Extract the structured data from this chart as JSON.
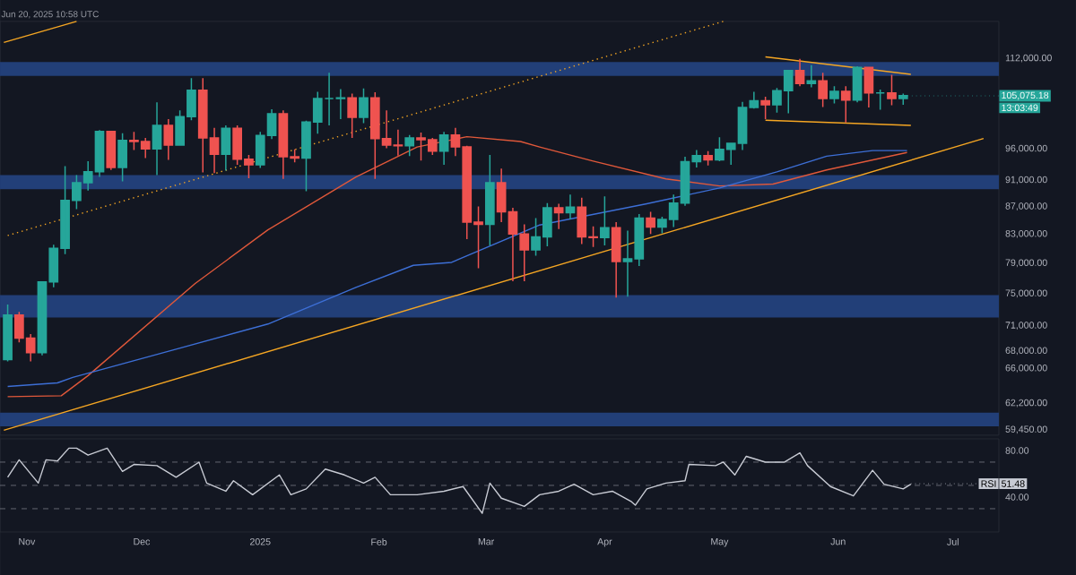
{
  "chart_data": [
    {
      "type": "candlestick",
      "xlim": [
        "2024-10-25",
        "2025-07-13"
      ],
      "ylim": [
        58900,
        119300
      ],
      "log": true,
      "tick_labels": "y",
      "yticks": [
        {
          "value": 112000,
          "label": "112,000.00"
        },
        {
          "value": 96000,
          "label": "96,000.00"
        },
        {
          "value": 91000,
          "label": "91,000.00"
        },
        {
          "value": 87000,
          "label": "87,000.00"
        },
        {
          "value": 83000,
          "label": "83,000.00"
        },
        {
          "value": 79000,
          "label": "79,000.00"
        },
        {
          "value": 75000,
          "label": "75,000.00"
        },
        {
          "value": 71000,
          "label": "71,000.00"
        },
        {
          "value": 68000,
          "label": "68,000.00"
        },
        {
          "value": 66000,
          "label": "66,000.00"
        },
        {
          "value": 62200,
          "label": "62,200.00"
        },
        {
          "value": 59450,
          "label": "59,450.00"
        }
      ],
      "x": [
        "2024-10-27",
        "2024-10-30",
        "2024-11-02",
        "2024-11-05",
        "2024-11-08",
        "2024-11-11",
        "2024-11-14",
        "2024-11-17",
        "2024-11-20",
        "2024-11-23",
        "2024-11-26",
        "2024-11-29",
        "2024-12-02",
        "2024-12-05",
        "2024-12-08",
        "2024-12-11",
        "2024-12-14",
        "2024-12-17",
        "2024-12-20",
        "2024-12-23",
        "2024-12-26",
        "2024-12-29",
        "2025-01-01",
        "2025-01-04",
        "2025-01-07",
        "2025-01-10",
        "2025-01-13",
        "2025-01-16",
        "2025-01-19",
        "2025-01-22",
        "2025-01-25",
        "2025-01-28",
        "2025-01-31",
        "2025-02-03",
        "2025-02-06",
        "2025-02-09",
        "2025-02-12",
        "2025-02-15",
        "2025-02-18",
        "2025-02-21",
        "2025-02-24",
        "2025-02-27",
        "2025-03-02",
        "2025-03-05",
        "2025-03-08",
        "2025-03-11",
        "2025-03-14",
        "2025-03-17",
        "2025-03-20",
        "2025-03-23",
        "2025-03-26",
        "2025-03-29",
        "2025-04-01",
        "2025-04-04",
        "2025-04-07",
        "2025-04-10",
        "2025-04-13",
        "2025-04-16",
        "2025-04-19",
        "2025-04-22",
        "2025-04-25",
        "2025-04-28",
        "2025-05-01",
        "2025-05-04",
        "2025-05-07",
        "2025-05-10",
        "2025-05-13",
        "2025-05-16",
        "2025-05-19",
        "2025-05-22",
        "2025-05-25",
        "2025-05-28",
        "2025-05-31",
        "2025-06-03",
        "2025-06-06",
        "2025-06-09",
        "2025-06-12",
        "2025-06-15",
        "2025-06-18"
      ],
      "ohlc": [
        [
          67000,
          73600,
          66800,
          72300
        ],
        [
          72300,
          72700,
          69000,
          69500
        ],
        [
          69500,
          70000,
          66800,
          67800
        ],
        [
          67800,
          76500,
          67500,
          76500
        ],
        [
          76500,
          81500,
          75800,
          81000
        ],
        [
          81000,
          93200,
          80200,
          87900
        ],
        [
          87900,
          91800,
          86600,
          90600
        ],
        [
          90600,
          94000,
          89400,
          92300
        ],
        [
          92300,
          99100,
          91500,
          98900
        ],
        [
          98900,
          99000,
          92600,
          93000
        ],
        [
          93000,
          98600,
          90800,
          97400
        ],
        [
          97400,
          98800,
          95800,
          97200
        ],
        [
          97200,
          97800,
          94500,
          96000
        ],
        [
          96000,
          103900,
          91800,
          99900
        ],
        [
          99900,
          101000,
          94200,
          96600
        ],
        [
          96600,
          102500,
          96500,
          101400
        ],
        [
          101400,
          108300,
          100800,
          106100
        ],
        [
          106100,
          108300,
          92200,
          97800
        ],
        [
          97800,
          99500,
          92100,
          95100
        ],
        [
          95100,
          99900,
          92500,
          99400
        ],
        [
          99400,
          99900,
          93400,
          94300
        ],
        [
          94300,
          95000,
          91300,
          93400
        ],
        [
          93400,
          98800,
          92900,
          98200
        ],
        [
          98200,
          102700,
          97600,
          101900
        ],
        [
          101900,
          102500,
          91200,
          94700
        ],
        [
          94700,
          95900,
          93800,
          94500
        ],
        [
          94500,
          100700,
          89300,
          100500
        ],
        [
          100500,
          105800,
          98500,
          104600
        ],
        [
          104600,
          109300,
          99900,
          104600
        ],
        [
          104600,
          106300,
          101000,
          104700
        ],
        [
          104700,
          105500,
          97800,
          101300
        ],
        [
          101300,
          106400,
          100300,
          104700
        ],
        [
          104700,
          105700,
          91200,
          97700
        ],
        [
          97700,
          102500,
          96100,
          96600
        ],
        [
          96600,
          99200,
          94900,
          96500
        ],
        [
          96500,
          98300,
          94800,
          97800
        ],
        [
          97800,
          98700,
          94100,
          97500
        ],
        [
          97500,
          97800,
          95000,
          95600
        ],
        [
          95600,
          98800,
          93400,
          98300
        ],
        [
          98300,
          99500,
          94800,
          96300
        ],
        [
          96300,
          96500,
          82300,
          84700
        ],
        [
          84700,
          87000,
          78300,
          84400
        ],
        [
          84400,
          95000,
          81400,
          90600
        ],
        [
          90600,
          92800,
          84700,
          86200
        ],
        [
          86200,
          86800,
          76600,
          83000
        ],
        [
          83000,
          84400,
          76600,
          80800
        ],
        [
          80800,
          85300,
          80000,
          82600
        ],
        [
          82600,
          87500,
          81300,
          86800
        ],
        [
          86800,
          87400,
          83700,
          86100
        ],
        [
          86100,
          88800,
          85100,
          86900
        ],
        [
          86900,
          88300,
          81600,
          82600
        ],
        [
          82600,
          84100,
          81200,
          82500
        ],
        [
          82500,
          88500,
          81400,
          83900
        ],
        [
          83900,
          84700,
          74500,
          79200
        ],
        [
          79200,
          83500,
          74600,
          79600
        ],
        [
          79600,
          85900,
          78600,
          85300
        ],
        [
          85300,
          86200,
          83000,
          84000
        ],
        [
          84000,
          85500,
          83100,
          85100
        ],
        [
          85100,
          88800,
          84000,
          87500
        ],
        [
          87500,
          94700,
          87100,
          93900
        ],
        [
          93900,
          95800,
          93000,
          94900
        ],
        [
          94900,
          95600,
          93300,
          94200
        ],
        [
          94200,
          97900,
          94000,
          95900
        ],
        [
          95900,
          97000,
          93400,
          96900
        ],
        [
          96900,
          104000,
          95800,
          103000
        ],
        [
          103000,
          105800,
          102800,
          104200
        ],
        [
          104200,
          104900,
          101000,
          103500
        ],
        [
          103500,
          106500,
          102100,
          106000
        ],
        [
          106000,
          109800,
          102000,
          109700
        ],
        [
          109700,
          111900,
          106800,
          107300
        ],
        [
          107300,
          110700,
          106600,
          107800
        ],
        [
          107800,
          109300,
          103100,
          104600
        ],
        [
          104600,
          106800,
          103700,
          105900
        ],
        [
          105900,
          106800,
          100400,
          104300
        ],
        [
          104300,
          110500,
          103900,
          110300
        ],
        [
          110300,
          110400,
          103000,
          105600
        ],
        [
          105600,
          106200,
          102600,
          105600
        ],
        [
          105600,
          108900,
          103400,
          104600
        ],
        [
          104600,
          105500,
          103500,
          105100
        ]
      ],
      "series": [
        {
          "type": "line",
          "color": "#e0583a",
          "x": [
            "2024-10-27",
            "2024-11-10",
            "2024-11-17",
            "2024-12-15",
            "2025-01-03",
            "2025-01-26",
            "2025-02-11",
            "2025-02-24",
            "2025-03-10",
            "2025-03-15",
            "2025-03-29",
            "2025-04-17",
            "2025-05-01",
            "2025-05-15",
            "2025-05-29",
            "2025-06-19"
          ],
          "values": [
            62900,
            63000,
            65200,
            76300,
            83600,
            91500,
            96300,
            98000,
            97200,
            96300,
            94000,
            91200,
            90100,
            90400,
            92600,
            95400
          ]
        },
        {
          "type": "line",
          "color": "#3d6fd6",
          "x": [
            "2024-10-27",
            "2024-11-09",
            "2024-11-13",
            "2024-12-10",
            "2025-01-03",
            "2025-01-26",
            "2025-02-10",
            "2025-02-20",
            "2025-03-15",
            "2025-04-12",
            "2025-05-01",
            "2025-05-16",
            "2025-05-29",
            "2025-06-10",
            "2025-06-19"
          ],
          "values": [
            64000,
            64400,
            65000,
            68200,
            71200,
            75800,
            78700,
            79100,
            84300,
            87400,
            89800,
            92300,
            94800,
            95700,
            95700
          ]
        },
        {
          "type": "line",
          "color": "#f5a623",
          "x": [
            "2024-10-26",
            "2025-07-09"
          ],
          "values": [
            59400,
            97700
          ]
        },
        {
          "type": "line",
          "color": "#f5a623",
          "line_style": "dotted",
          "x": [
            "2024-10-27",
            "2025-05-02"
          ],
          "values": [
            82800,
            119300
          ]
        },
        {
          "type": "line",
          "color": "#f5a623",
          "x": [
            "2024-10-26",
            "2024-11-14"
          ],
          "values": [
            115100,
            119300
          ]
        },
        {
          "type": "line",
          "color": "#f5a623",
          "x": [
            "2025-05-13",
            "2025-06-20"
          ],
          "values": [
            112300,
            109000
          ]
        },
        {
          "type": "line",
          "color": "#f5a623",
          "x": [
            "2025-05-13",
            "2025-06-20"
          ],
          "values": [
            100800,
            99900
          ]
        }
      ],
      "bands": [
        {
          "axis": "y",
          "from": 108700,
          "to": 111300,
          "color": "#223f78"
        },
        {
          "axis": "y",
          "from": 89600,
          "to": 91800,
          "color": "#223f78"
        },
        {
          "axis": "y",
          "from": 72000,
          "to": 74800,
          "color": "#223f78"
        },
        {
          "axis": "y",
          "from": 59800,
          "to": 61200,
          "color": "#223f78"
        }
      ],
      "annotations": [
        "Jun 20, 2025 10:58 UTC",
        {
          "text": "105,075.18",
          "x": "2025-06-18",
          "y": 105075.18
        },
        "13:03:49"
      ]
    },
    {
      "type": "line",
      "xlim": [
        "2024-10-25",
        "2025-07-13"
      ],
      "ylim": [
        10,
        90
      ],
      "color": "#c8cbd4",
      "xticks": [
        {
          "value": "2024-11-01",
          "label": "Nov"
        },
        {
          "value": "2024-12-01",
          "label": "Dec"
        },
        {
          "value": "2025-01-01",
          "label": "2025"
        },
        {
          "value": "2025-02-01",
          "label": "Feb"
        },
        {
          "value": "2025-03-01",
          "label": "Mar"
        },
        {
          "value": "2025-04-01",
          "label": "Apr"
        },
        {
          "value": "2025-05-01",
          "label": "May"
        },
        {
          "value": "2025-06-01",
          "label": "Jun"
        },
        {
          "value": "2025-07-01",
          "label": "Jul"
        }
      ],
      "yticks": [
        {
          "value": 80,
          "label": "80.00"
        },
        {
          "value": 40,
          "label": "40.00"
        }
      ],
      "x": [
        "2024-10-27",
        "2024-10-30",
        "2024-11-04",
        "2024-11-06",
        "2024-11-09",
        "2024-11-12",
        "2024-11-14",
        "2024-11-17",
        "2024-11-22",
        "2024-11-26",
        "2024-11-29",
        "2024-12-05",
        "2024-12-10",
        "2024-12-16",
        "2024-12-18",
        "2024-12-23",
        "2024-12-25",
        "2024-12-30",
        "2025-01-06",
        "2025-01-09",
        "2025-01-13",
        "2025-01-18",
        "2025-01-23",
        "2025-01-28",
        "2025-01-31",
        "2025-02-04",
        "2025-02-11",
        "2025-02-18",
        "2025-02-23",
        "2025-02-28",
        "2025-03-02",
        "2025-03-05",
        "2025-03-11",
        "2025-03-15",
        "2025-03-20",
        "2025-03-24",
        "2025-03-29",
        "2025-04-03",
        "2025-04-08",
        "2025-04-09",
        "2025-04-12",
        "2025-04-17",
        "2025-04-22",
        "2025-04-23",
        "2025-04-30",
        "2025-05-02",
        "2025-05-05",
        "2025-05-08",
        "2025-05-13",
        "2025-05-18",
        "2025-05-22",
        "2025-05-24",
        "2025-05-30",
        "2025-06-05",
        "2025-06-10",
        "2025-06-13",
        "2025-06-18",
        "2025-06-20"
      ],
      "values": [
        57,
        72,
        52,
        72,
        71,
        82,
        82,
        76,
        82,
        62,
        68,
        67,
        57,
        70,
        52,
        45,
        54,
        42,
        59,
        42,
        47,
        64,
        59,
        52,
        57,
        42,
        42,
        45,
        49,
        26,
        52,
        39,
        32,
        42,
        45,
        51,
        42,
        45,
        36,
        33,
        47,
        52,
        54,
        68,
        67,
        70,
        59,
        75,
        70,
        70,
        78,
        67,
        49,
        41,
        63,
        51,
        47,
        51
      ],
      "ref_lines": [
        {
          "axis": "y",
          "value": 70,
          "color": "#787b86",
          "line_style": "dashed"
        },
        {
          "axis": "y",
          "value": 50,
          "color": "#787b86",
          "line_style": "dashed"
        },
        {
          "axis": "y",
          "value": 30,
          "color": "#787b86",
          "line_style": "dashed"
        }
      ],
      "annotations": [
        {
          "text": "51.48",
          "x": "2025-06-20",
          "y": 51.48
        },
        "RSI"
      ]
    }
  ]
}
